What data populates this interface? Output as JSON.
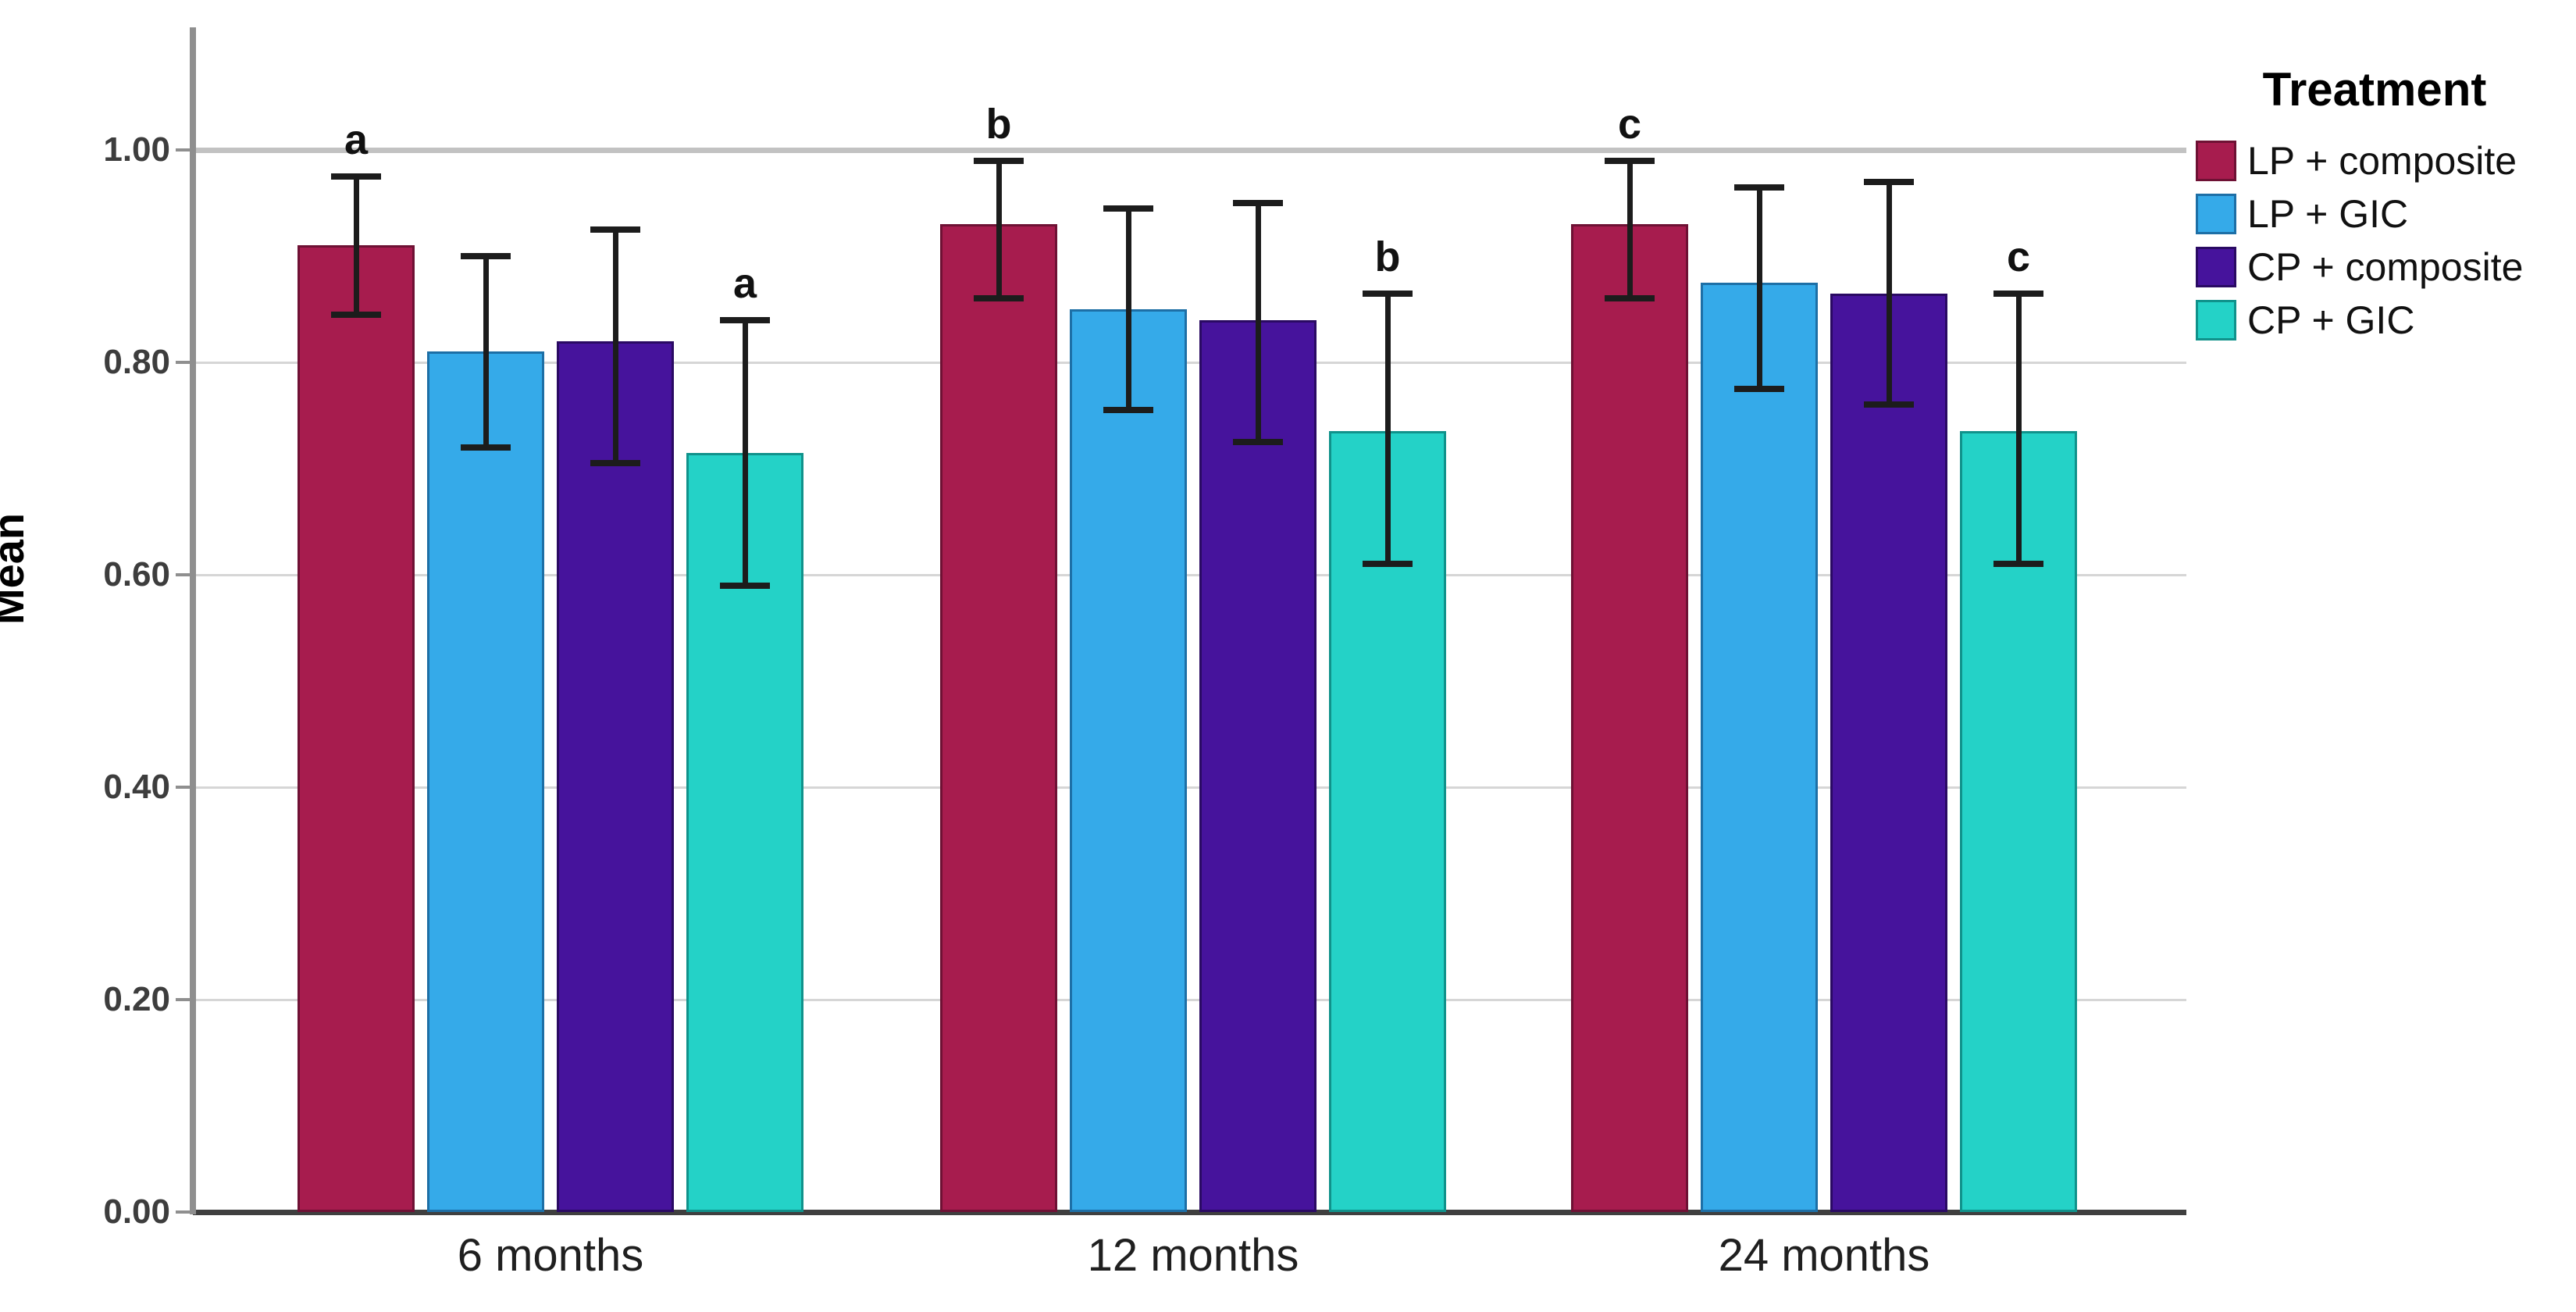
{
  "figure": {
    "background": "#ffffff"
  },
  "chart_data": {
    "type": "bar",
    "title": "",
    "xlabel": "",
    "ylabel": "Mean",
    "categories": [
      "6 months",
      "12 months",
      "24 months"
    ],
    "y_ticks": [
      "0.00",
      "0.20",
      "0.40",
      "0.60",
      "0.80",
      "1.00"
    ],
    "ylim": [
      0,
      1.1
    ],
    "grid": "horizontal",
    "legend_position": "right",
    "legend_title": "Treatment",
    "series": [
      {
        "name": "LP + composite",
        "color": "#A71C4E",
        "border": "#6E1134",
        "values": [
          0.91,
          0.93,
          0.93
        ],
        "error_low": [
          0.845,
          0.86,
          0.86
        ],
        "error_high": [
          0.975,
          0.99,
          0.99
        ]
      },
      {
        "name": "LP + GIC",
        "color": "#35AAE9",
        "border": "#1D6FA6",
        "values": [
          0.81,
          0.85,
          0.875
        ],
        "error_low": [
          0.72,
          0.755,
          0.775
        ],
        "error_high": [
          0.9,
          0.945,
          0.965
        ]
      },
      {
        "name": "CP + composite",
        "color": "#46139C",
        "border": "#2A0A63",
        "values": [
          0.82,
          0.84,
          0.865
        ],
        "error_low": [
          0.705,
          0.725,
          0.76
        ],
        "error_high": [
          0.925,
          0.95,
          0.97
        ]
      },
      {
        "name": "CP + GIC",
        "color": "#24D2C7",
        "border": "#10928B",
        "values": [
          0.715,
          0.735,
          0.735
        ],
        "error_low": [
          0.59,
          0.61,
          0.61
        ],
        "error_high": [
          0.84,
          0.865,
          0.865
        ]
      }
    ],
    "annotations": [
      {
        "category": "6 months",
        "series": "LP + composite",
        "letter": "a"
      },
      {
        "category": "6 months",
        "series": "CP + GIC",
        "letter": "a"
      },
      {
        "category": "12 months",
        "series": "LP + composite",
        "letter": "b"
      },
      {
        "category": "12 months",
        "series": "CP + GIC",
        "letter": "b"
      },
      {
        "category": "24 months",
        "series": "LP + composite",
        "letter": "c"
      },
      {
        "category": "24 months",
        "series": "CP + GIC",
        "letter": "c"
      }
    ]
  },
  "style_colors": {
    "gridline": "#d6d6d6",
    "gridline_top": "#c2c2c2",
    "baseline": "#3f3f3f",
    "axis_spine": "#8f8f8f",
    "error_bar": "#1c1c1c",
    "text": "#1f1f1f"
  }
}
